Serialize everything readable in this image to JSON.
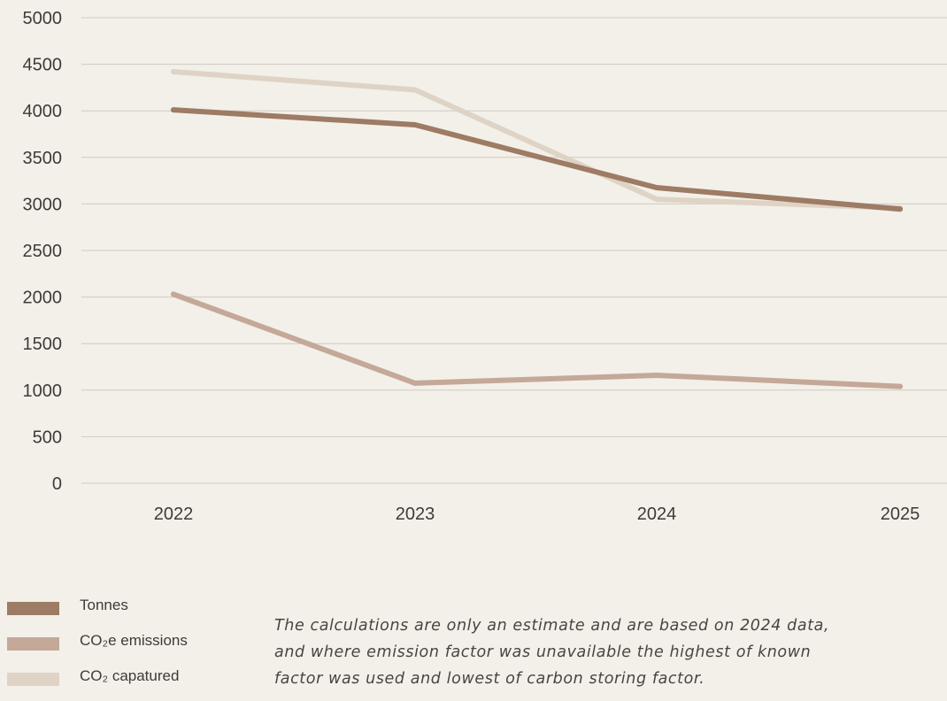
{
  "chart_data": {
    "type": "line",
    "categories": [
      "2022",
      "2023",
      "2024",
      "2025"
    ],
    "ylim": [
      0,
      5000
    ],
    "yticks": [
      0,
      500,
      1000,
      1500,
      2000,
      2500,
      3000,
      3500,
      4000,
      4500,
      5000
    ],
    "grid": true,
    "legend_position": "bottom-left",
    "series": [
      {
        "name": "Tonnes",
        "color": "#9d7b64",
        "values": [
          4010,
          3850,
          3175,
          2945
        ]
      },
      {
        "name": "CO₂e emissions",
        "color": "#c4a898",
        "values": [
          2030,
          1075,
          1160,
          1040
        ]
      },
      {
        "name": "CO₂  capatured",
        "color": "#dfd3c5",
        "values": [
          4420,
          4225,
          3050,
          2955
        ]
      }
    ]
  },
  "note": "The calculations are only an estimate and are based on 2024 data, and where emission factor was unavailable the highest of known factor was used and lowest of carbon storing factor."
}
